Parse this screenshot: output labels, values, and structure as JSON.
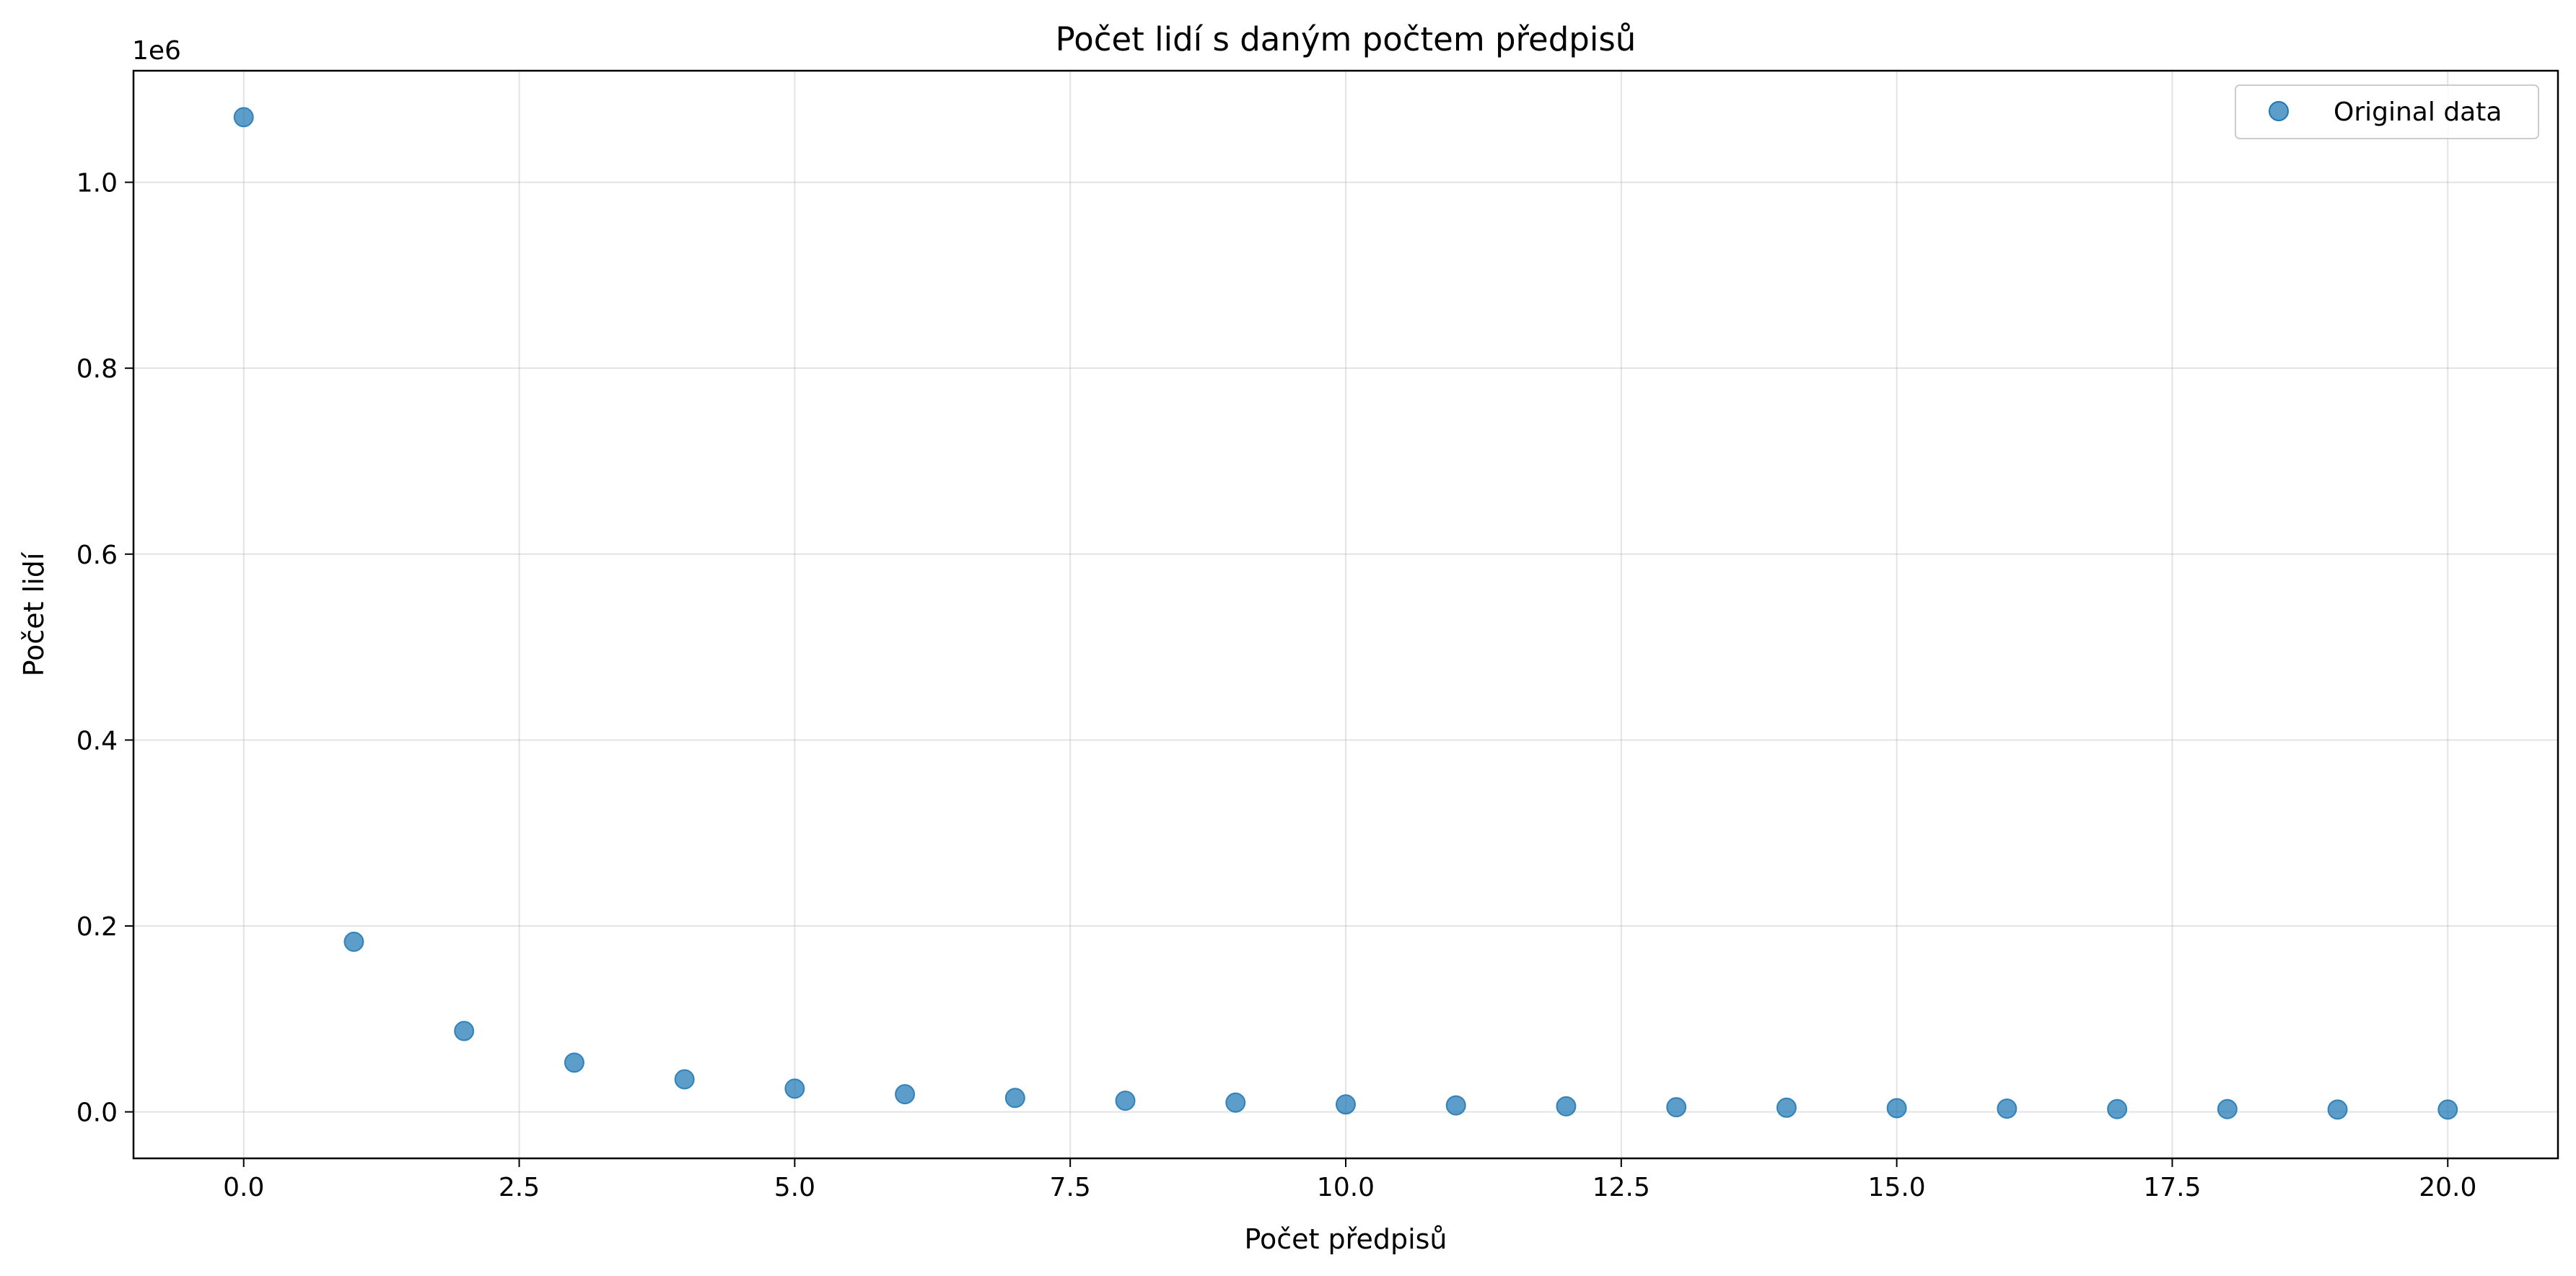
{
  "chart_data": {
    "type": "scatter",
    "title": "Počet lidí s daným počtem předpisů",
    "xlabel": "Počet předpisů",
    "ylabel": "Počet lidí",
    "y_offset_label": "1e6",
    "xlim": [
      -1.0,
      21.0
    ],
    "ylim": [
      -0.05,
      1.12
    ],
    "x_ticks": [
      0.0,
      2.5,
      5.0,
      7.5,
      10.0,
      12.5,
      15.0,
      17.5,
      20.0
    ],
    "x_tick_labels": [
      "0.0",
      "2.5",
      "5.0",
      "7.5",
      "10.0",
      "12.5",
      "15.0",
      "17.5",
      "20.0"
    ],
    "y_ticks": [
      0.0,
      0.2,
      0.4,
      0.6,
      0.8,
      1.0
    ],
    "y_tick_labels": [
      "0.0",
      "0.2",
      "0.4",
      "0.6",
      "0.8",
      "1.0"
    ],
    "grid": true,
    "legend_position": "top-right",
    "series": [
      {
        "name": "Original data",
        "color": "#1f77b4",
        "x": [
          0,
          1,
          2,
          3,
          4,
          5,
          6,
          7,
          8,
          9,
          10,
          11,
          12,
          13,
          14,
          15,
          16,
          17,
          18,
          19,
          20
        ],
        "y": [
          1.07,
          0.183,
          0.087,
          0.053,
          0.035,
          0.025,
          0.019,
          0.015,
          0.012,
          0.01,
          0.008,
          0.007,
          0.006,
          0.005,
          0.0045,
          0.004,
          0.0035,
          0.003,
          0.003,
          0.0025,
          0.0025
        ]
      }
    ]
  }
}
